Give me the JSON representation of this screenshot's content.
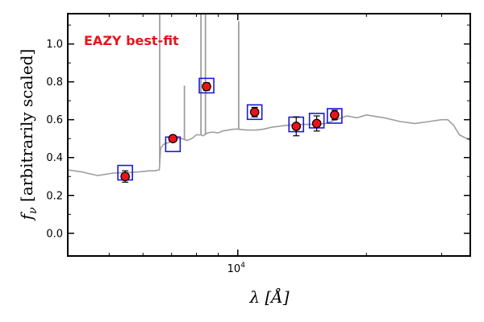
{
  "chart_data": {
    "type": "scatter",
    "title": "",
    "annotation": "EAZY best-fit",
    "x_scale": "log",
    "xlim": [
      4000,
      35000
    ],
    "ylim": [
      -0.12,
      1.16
    ],
    "ylabel_prefix": "f",
    "ylabel_sub": "ν",
    "ylabel_text": " [arbitrarily scaled]",
    "xlabel_main": "λ [",
    "xlabel_unit": "Å",
    "xlabel_end": "]",
    "x_tick_labels": [
      {
        "value": 10000,
        "base": "10",
        "exp": "4"
      }
    ],
    "y_tick_labels": [
      {
        "value": 0.0,
        "label": "0.0"
      },
      {
        "value": 0.2,
        "label": "0.2"
      },
      {
        "value": 0.4,
        "label": "0.4"
      },
      {
        "value": 0.6,
        "label": "0.6"
      },
      {
        "value": 0.8,
        "label": "0.8"
      },
      {
        "value": 1.0,
        "label": "1.0"
      }
    ],
    "grid": false,
    "series": [
      {
        "kind": "template_spectrum",
        "color": "#9e9e9e",
        "x": [
          4000,
          4300,
          4700,
          5100,
          5500,
          5900,
          6200,
          6400,
          6550,
          6600,
          6700,
          6900,
          7100,
          7250,
          7400,
          7600,
          7800,
          8000,
          8200,
          8300,
          8500,
          8700,
          9000,
          9200,
          9500,
          9800,
          10000,
          10500,
          11000,
          11500,
          12000,
          13000,
          14000,
          15000,
          16000,
          17000,
          18000,
          19000,
          20000,
          22000,
          24000,
          26000,
          28000,
          30000,
          31000,
          32000,
          33000,
          35000
        ],
        "y": [
          0.335,
          0.325,
          0.305,
          0.318,
          0.32,
          0.325,
          0.33,
          0.33,
          0.335,
          0.45,
          0.47,
          0.48,
          0.5,
          0.5,
          0.5,
          0.49,
          0.5,
          0.52,
          0.52,
          0.515,
          0.53,
          0.535,
          0.53,
          0.54,
          0.545,
          0.55,
          0.55,
          0.545,
          0.545,
          0.55,
          0.56,
          0.57,
          0.575,
          0.575,
          0.58,
          0.6,
          0.62,
          0.61,
          0.625,
          0.61,
          0.59,
          0.58,
          0.59,
          0.6,
          0.6,
          0.57,
          0.52,
          0.49
        ]
      },
      {
        "kind": "emission_lines",
        "color": "#9e9e9e",
        "lines": [
          {
            "x": 6565,
            "top": 1.16
          },
          {
            "x": 7500,
            "top": 0.78
          },
          {
            "x": 8200,
            "top": 1.16
          },
          {
            "x": 8400,
            "top": 1.16
          },
          {
            "x": 10050,
            "top": 1.12
          }
        ]
      },
      {
        "kind": "model_photometry",
        "color": "#1a1adb",
        "x": [
          5450,
          7050,
          8450,
          10950,
          13700,
          15300,
          16850
        ],
        "y": [
          0.32,
          0.47,
          0.78,
          0.64,
          0.575,
          0.595,
          0.62
        ]
      },
      {
        "kind": "observed_photometry",
        "color": "#e8141c",
        "x": [
          5450,
          7050,
          8450,
          10950,
          13700,
          15300,
          16850
        ],
        "y": [
          0.3,
          0.5,
          0.775,
          0.64,
          0.565,
          0.58,
          0.625
        ],
        "yerr": [
          0.03,
          0.015,
          0.02,
          0.025,
          0.05,
          0.04,
          0.025
        ]
      }
    ]
  }
}
